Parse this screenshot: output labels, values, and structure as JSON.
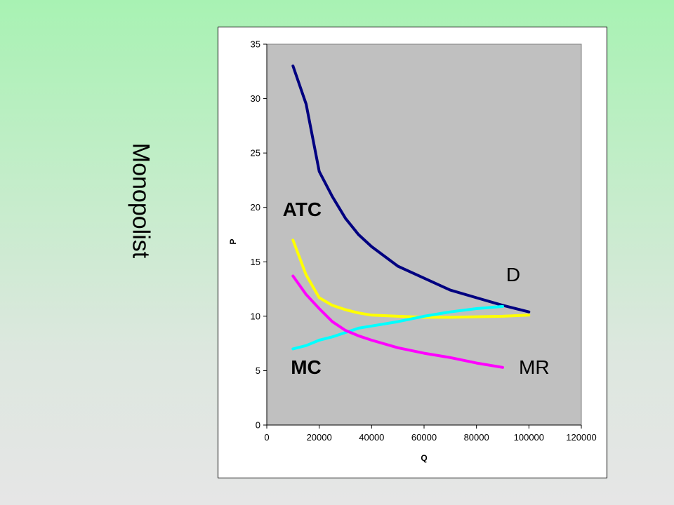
{
  "slide": {
    "title": "Monopolist"
  },
  "colors": {
    "background_top": "#a8f2b3",
    "background_bottom": "#e6e6e6",
    "plot_area": "#c0c0c0",
    "D": "#000080",
    "ATC": "#ffff00",
    "MC": "#00ffff",
    "MR": "#ff00ff"
  },
  "chart_data": {
    "type": "line",
    "title": "",
    "xlabel": "Q",
    "ylabel": "P",
    "xlim": [
      0,
      120000
    ],
    "ylim": [
      0,
      35
    ],
    "x_ticks": [
      "0",
      "20000",
      "40000",
      "60000",
      "80000",
      "100000",
      "120000"
    ],
    "y_ticks": [
      "0",
      "5",
      "10",
      "15",
      "20",
      "25",
      "30",
      "35"
    ],
    "grid": false,
    "series": [
      {
        "name": "D",
        "color": "#000080",
        "points": [
          [
            10000,
            33
          ],
          [
            15000,
            29.5
          ],
          [
            20000,
            23.3
          ],
          [
            25000,
            21
          ],
          [
            30000,
            19
          ],
          [
            35000,
            17.5
          ],
          [
            40000,
            16.4
          ],
          [
            50000,
            14.6
          ],
          [
            60000,
            13.5
          ],
          [
            70000,
            12.4
          ],
          [
            80000,
            11.7
          ],
          [
            90000,
            11
          ],
          [
            100000,
            10.4
          ]
        ]
      },
      {
        "name": "ATC",
        "color": "#ffff00",
        "points": [
          [
            10000,
            17
          ],
          [
            15000,
            13.8
          ],
          [
            20000,
            11.7
          ],
          [
            25000,
            11
          ],
          [
            30000,
            10.6
          ],
          [
            35000,
            10.3
          ],
          [
            40000,
            10.1
          ],
          [
            50000,
            10
          ],
          [
            60000,
            9.9
          ],
          [
            70000,
            9.9
          ],
          [
            80000,
            9.95
          ],
          [
            90000,
            10
          ],
          [
            100000,
            10.1
          ]
        ]
      },
      {
        "name": "MC",
        "color": "#00ffff",
        "points": [
          [
            10000,
            7
          ],
          [
            15000,
            7.3
          ],
          [
            20000,
            7.8
          ],
          [
            25000,
            8.1
          ],
          [
            30000,
            8.5
          ],
          [
            35000,
            8.9
          ],
          [
            40000,
            9.1
          ],
          [
            50000,
            9.5
          ],
          [
            60000,
            10
          ],
          [
            70000,
            10.4
          ],
          [
            80000,
            10.7
          ],
          [
            90000,
            10.9
          ]
        ]
      },
      {
        "name": "MR",
        "color": "#ff00ff",
        "points": [
          [
            10000,
            13.7
          ],
          [
            15000,
            12
          ],
          [
            20000,
            10.7
          ],
          [
            25000,
            9.5
          ],
          [
            30000,
            8.7
          ],
          [
            35000,
            8.2
          ],
          [
            40000,
            7.8
          ],
          [
            50000,
            7.1
          ],
          [
            60000,
            6.6
          ],
          [
            70000,
            6.2
          ],
          [
            80000,
            5.7
          ],
          [
            90000,
            5.3
          ]
        ]
      }
    ],
    "annotations": [
      {
        "text": "ATC",
        "bold": true,
        "x": 13500,
        "y": 19.2
      },
      {
        "text": "D",
        "bold": false,
        "x": 94000,
        "y": 13.2
      },
      {
        "text": "MC",
        "bold": true,
        "x": 15000,
        "y": 4.7
      },
      {
        "text": "MR",
        "bold": false,
        "x": 102000,
        "y": 4.7
      }
    ]
  }
}
